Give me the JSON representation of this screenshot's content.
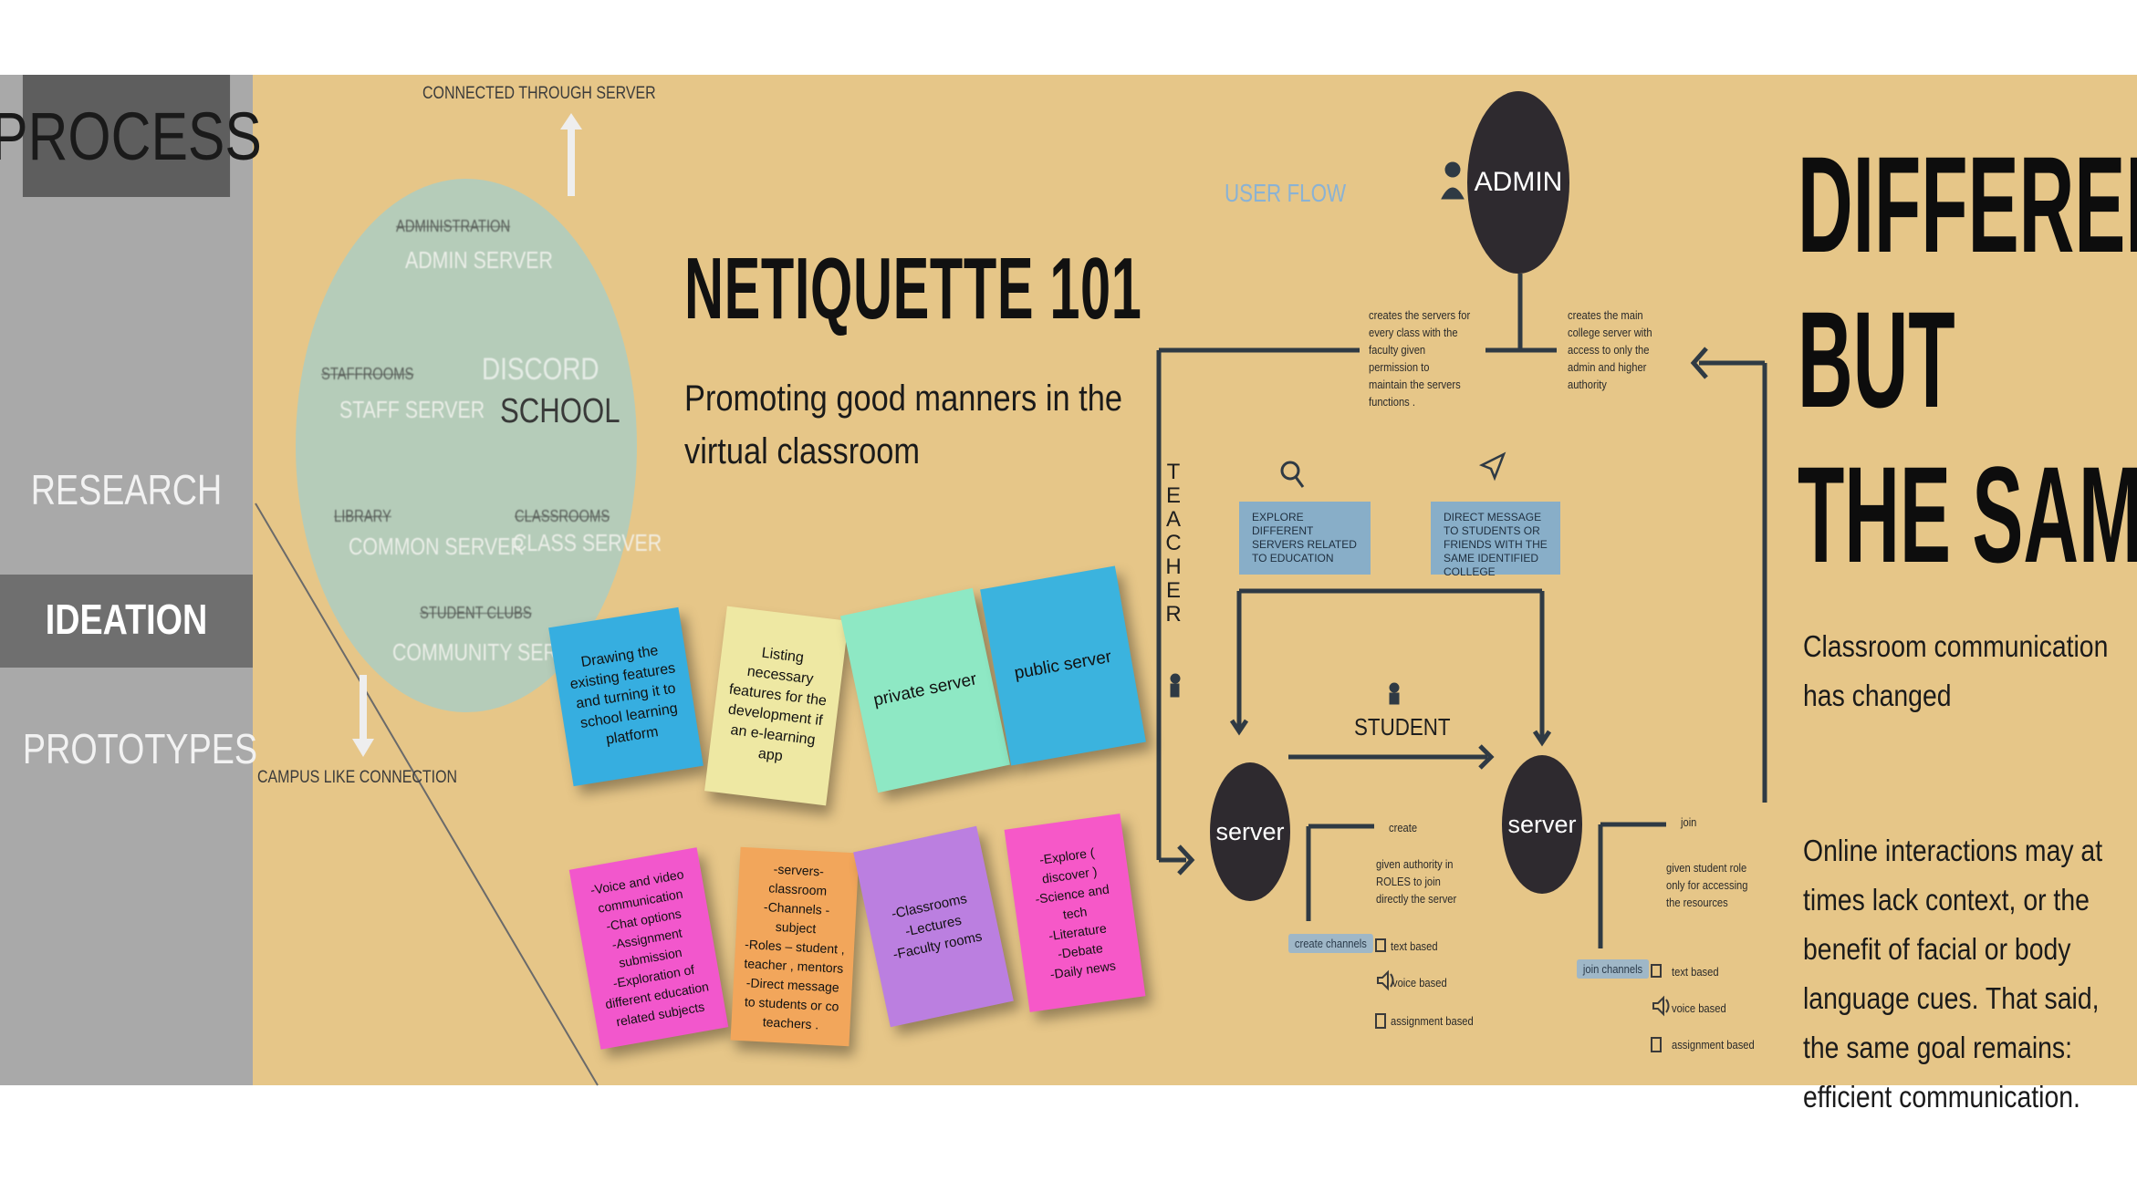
{
  "sidebar": {
    "title": "PROCESS",
    "items": [
      "RESEARCH",
      "IDEATION",
      "PROTOTYPES"
    ],
    "active": "IDEATION"
  },
  "ideation_map": {
    "top_label": "CONNECTED THROUGH SERVER",
    "bottom_label": "CAMPUS LIKE CONNECTION",
    "center": [
      "DISCORD",
      "SCHOOL"
    ],
    "servers": [
      {
        "name": "ADMINISTRATION",
        "label": "ADMIN SERVER"
      },
      {
        "name": "STAFFROOMS",
        "label": "STAFF SERVER"
      },
      {
        "name": "LIBRARY",
        "label": "COMMON SERVER"
      },
      {
        "name": "CLASSROOMS",
        "label": "CLASS SERVER"
      },
      {
        "name": "STUDENT CLUBS",
        "label": "COMMUNITY SERVER"
      }
    ]
  },
  "hero": {
    "title": "NETIQUETTE 101",
    "subtitle": "Promoting good manners in the virtual classroom"
  },
  "sticky_notes": [
    {
      "text": "Drawing the existing features and turning it to school learning platform",
      "color": "#36aee0"
    },
    {
      "text": "Listing necessary features for the development if an e-learning app",
      "color": "#eee8a3"
    },
    {
      "text": "private server",
      "color": "#8ee8c4"
    },
    {
      "text": "public server",
      "color": "#3bb3de"
    },
    {
      "text": "-Voice and video communication\n-Chat options\n-Assignment submission\n-Exploration of different education related subjects",
      "color": "#f257cc"
    },
    {
      "text": "-servers- classroom\n-Channels - subject\n-Roles – student , teacher , mentors\n-Direct message to students or co teachers .",
      "color": "#f2a65b"
    },
    {
      "text": "-Classrooms\n-Lectures\n-Faculty rooms",
      "color": "#bb7fe0"
    },
    {
      "text": "-Explore ( discover )\n-Science and tech\n-Literature\n-Debate\n-Daily news",
      "color": "#f658c8"
    }
  ],
  "user_flow": {
    "label": "USER FLOW",
    "admin": "ADMIN",
    "admin_left_note": "creates the servers for every class with the faculty given permission to maintain the servers functions .",
    "admin_right_note": "creates the main college server with access to only the admin and higher authority",
    "teacher": "TEACHER",
    "explore_box": "EXPLORE DIFFERENT SERVERS RELATED TO EDUCATION",
    "dm_box": "DIRECT MESSAGE TO STUDENTS OR FRIENDS WITH THE SAME IDENTIFIED COLLEGE",
    "student": "STUDENT",
    "server_left": {
      "label": "server",
      "action": "create",
      "note": "given  authority in ROLES to join directly the server",
      "chip": "create channels",
      "options": [
        "text based",
        "voice based",
        "assignment based"
      ]
    },
    "server_right": {
      "label": "server",
      "action": "join",
      "note": "given student role only for accessing the resources",
      "chip": "join channels",
      "options": [
        "text based",
        "voice based",
        "assignment based"
      ]
    }
  },
  "right_panel": {
    "headline": [
      "DIFFERENT",
      "BUT",
      "THE SAME"
    ],
    "text1": "Classroom communication has changed",
    "text2": "Online interactions may at times lack context, or the benefit of facial or body language cues. That said, the same goal remains: efficient communication."
  },
  "colors": {
    "background": "#e6c688",
    "sidebar": "#a9a9a9",
    "sidebar_header": "#5e5e5e",
    "circle": "#b5ccb9",
    "node": "#2e2a2f",
    "line": "#2f3a44"
  }
}
